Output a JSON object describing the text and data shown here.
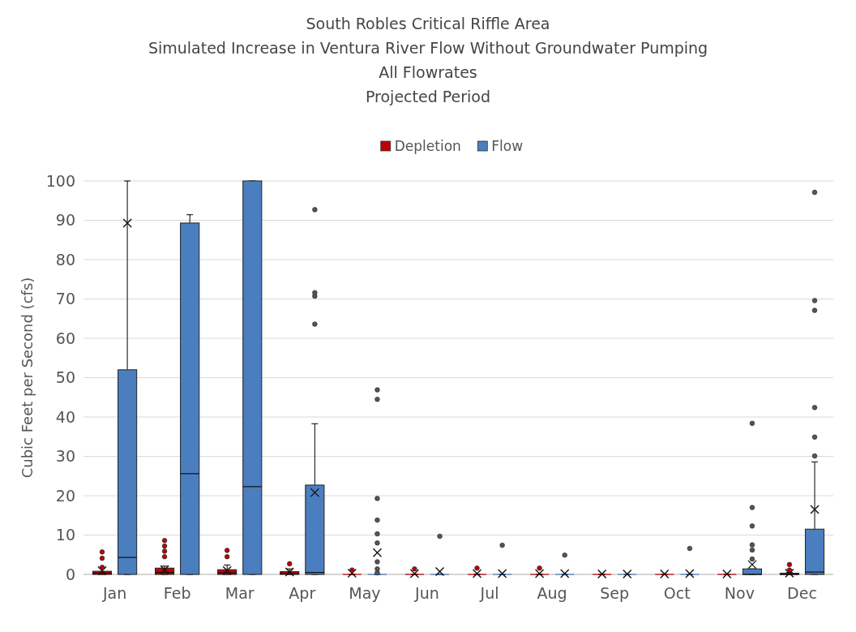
{
  "chart_data": {
    "type": "box",
    "title": "South Robles Critical Riffle Area\nSimulated Increase in Ventura River Flow Without Groundwater Pumping\nAll Flowrates\nProjected Period",
    "ylabel": "Cubic Feet per Second (cfs)",
    "categories": [
      "Jan",
      "Feb",
      "Mar",
      "Apr",
      "May",
      "Jun",
      "Jul",
      "Aug",
      "Sep",
      "Oct",
      "Nov",
      "Dec"
    ],
    "ylim": [
      0,
      100
    ],
    "yticks": [
      0,
      10,
      20,
      30,
      40,
      50,
      60,
      70,
      80,
      90,
      100
    ],
    "grid": "y",
    "legend": "top",
    "series": [
      {
        "name": "Depletion",
        "color": "#c00000",
        "boxes": [
          {
            "low": 0,
            "q1": 0,
            "median": 0.3,
            "q3": 0.8,
            "high": 1.5,
            "mean": 1,
            "outliers": [
              5.7,
              4.1,
              1.8
            ]
          },
          {
            "low": 0,
            "q1": 0,
            "median": 0.5,
            "q3": 1.6,
            "high": 2.1,
            "mean": 1.2,
            "outliers": [
              8.6,
              7.2,
              5.9,
              4.5
            ]
          },
          {
            "low": 0,
            "q1": 0,
            "median": 0.4,
            "q3": 1.2,
            "high": 2.4,
            "mean": 1,
            "outliers": [
              6.1,
              4.5
            ]
          },
          {
            "low": 0,
            "q1": 0,
            "median": 0.2,
            "q3": 0.7,
            "high": 1.4,
            "mean": 0.6,
            "outliers": [
              2.7
            ]
          },
          {
            "low": 0,
            "q1": 0,
            "median": 0,
            "q3": 0,
            "high": 0,
            "mean": 0.3,
            "outliers": [
              1.1
            ]
          },
          {
            "low": 0,
            "q1": 0,
            "median": 0,
            "q3": 0,
            "high": 0,
            "mean": 0.2,
            "outliers": [
              1.4
            ]
          },
          {
            "low": 0,
            "q1": 0,
            "median": 0,
            "q3": 0,
            "high": 0,
            "mean": 0.2,
            "outliers": [
              1.6
            ]
          },
          {
            "low": 0,
            "q1": 0,
            "median": 0,
            "q3": 0,
            "high": 0,
            "mean": 0.2,
            "outliers": [
              1.6
            ]
          },
          {
            "low": 0,
            "q1": 0,
            "median": 0,
            "q3": 0,
            "high": 0,
            "mean": 0.1
          },
          {
            "low": 0,
            "q1": 0,
            "median": 0,
            "q3": 0,
            "high": 0,
            "mean": 0.1
          },
          {
            "low": 0,
            "q1": 0,
            "median": 0,
            "q3": 0,
            "high": 0,
            "mean": 0.1
          },
          {
            "low": 0,
            "q1": 0,
            "median": 0,
            "q3": 0.3,
            "high": 0.5,
            "mean": 0.3,
            "outliers": [
              2.5,
              1.1
            ]
          }
        ]
      },
      {
        "name": "Flow",
        "color": "#4a7ebf",
        "boxes": [
          {
            "low": 0,
            "q1": 0,
            "median": 4.3,
            "q3": 52,
            "high": 100,
            "mean": 89.3
          },
          {
            "low": 0,
            "q1": 0,
            "median": 25.6,
            "q3": 89.3,
            "high": 91.4
          },
          {
            "low": 0,
            "q1": 0,
            "median": 22.3,
            "q3": 100,
            "high": 100
          },
          {
            "low": 0,
            "q1": 0,
            "median": 0.5,
            "q3": 22.7,
            "high": 38.3,
            "mean": 20.8,
            "outliers": [
              92.7,
              71.6,
              70.7,
              63.6
            ]
          },
          {
            "low": 0,
            "q1": 0,
            "median": 0,
            "q3": 0,
            "high": 0,
            "mean": 5.5,
            "outliers": [
              46.9,
              44.5,
              19.3,
              13.8,
              10.3,
              8,
              3.2,
              1.4,
              0.4
            ]
          },
          {
            "low": 0,
            "q1": 0,
            "median": 0,
            "q3": 0,
            "high": 0,
            "mean": 0.7,
            "outliers": [
              9.7
            ]
          },
          {
            "low": 0,
            "q1": 0,
            "median": 0,
            "q3": 0,
            "high": 0,
            "mean": 0.2,
            "outliers": [
              7.4
            ]
          },
          {
            "low": 0,
            "q1": 0,
            "median": 0,
            "q3": 0,
            "high": 0,
            "mean": 0.2,
            "outliers": [
              4.9
            ]
          },
          {
            "low": 0,
            "q1": 0,
            "median": 0,
            "q3": 0,
            "high": 0,
            "mean": 0.1
          },
          {
            "low": 0,
            "q1": 0,
            "median": 0,
            "q3": 0,
            "high": 0,
            "mean": 0.2,
            "outliers": [
              6.6
            ]
          },
          {
            "low": 0,
            "q1": 0,
            "median": 0,
            "q3": 1.4,
            "high": 1.4,
            "mean": 2.5,
            "outliers": [
              38.4,
              17,
              12.3,
              7.5,
              6.2,
              3.9
            ]
          },
          {
            "low": 0,
            "q1": 0,
            "median": 0.6,
            "q3": 11.5,
            "high": 28.6,
            "mean": 16.5,
            "outliers": [
              97.1,
              69.6,
              67.1,
              42.4,
              34.9,
              30.1
            ]
          }
        ]
      }
    ]
  }
}
